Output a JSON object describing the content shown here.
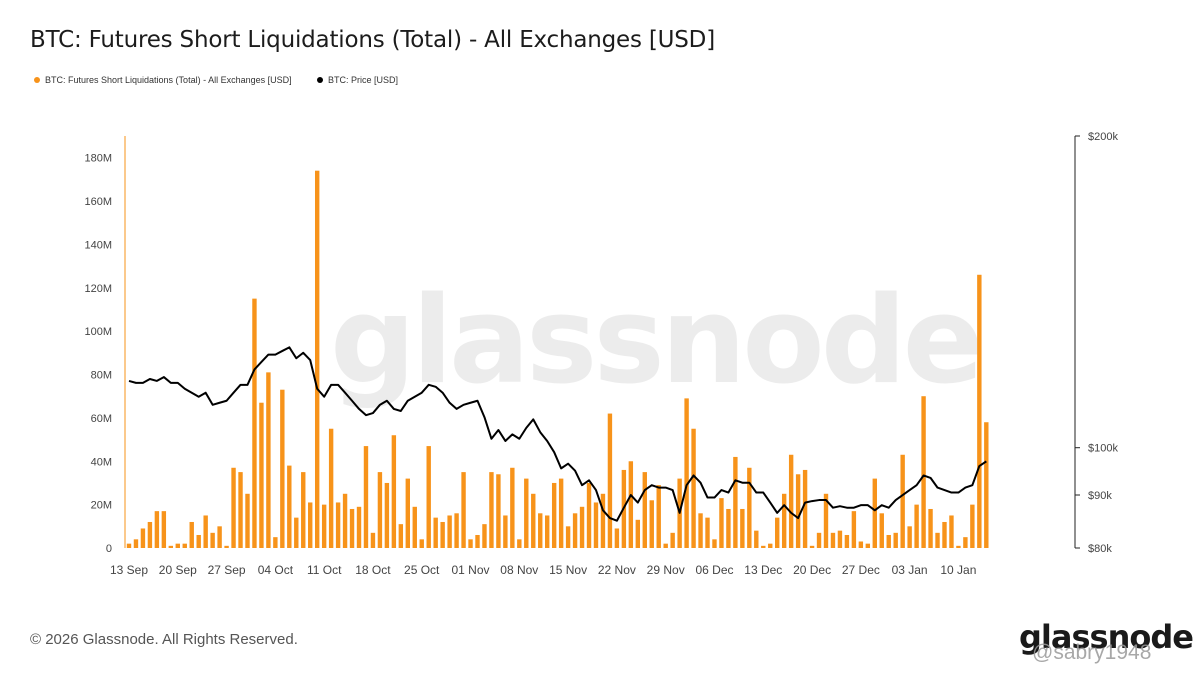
{
  "page": {
    "title": "BTC: Futures Short Liquidations (Total) - All Exchanges [USD]",
    "copyright": "© 2026 Glassnode. All Rights Reserved.",
    "logo_text": "glassnode",
    "background_watermark": "glassnode",
    "user_watermark": "@sabry1948"
  },
  "colors": {
    "bars": "#F7931A",
    "price": "#000000",
    "axis": "#F7931A"
  },
  "chart_data": {
    "type": "bar",
    "title": "BTC: Futures Short Liquidations (Total) - All Exchanges [USD]",
    "legend_position": "top-left",
    "grid": false,
    "x_ticks": [
      "13 Sep",
      "20 Sep",
      "27 Sep",
      "04 Oct",
      "11 Oct",
      "18 Oct",
      "25 Oct",
      "01 Nov",
      "08 Nov",
      "15 Nov",
      "22 Nov",
      "29 Nov",
      "06 Dec",
      "13 Dec",
      "20 Dec",
      "27 Dec",
      "03 Jan",
      "10 Jan"
    ],
    "x_range": [
      "2025-09-13",
      "2026-01-14"
    ],
    "y_left": {
      "ticks": [
        "0",
        "20M",
        "40M",
        "60M",
        "80M",
        "100M",
        "120M",
        "140M",
        "160M",
        "180M"
      ],
      "range": [
        0,
        190
      ]
    },
    "y_right": {
      "scale": "log",
      "ticks": [
        "$80k",
        "$90k",
        "$100k",
        "$200k"
      ],
      "tick_values": [
        80,
        90,
        100,
        200
      ],
      "range": [
        80,
        200
      ]
    },
    "series": [
      {
        "name": "BTC: Futures Short Liquidations (Total) - All Exchanges [USD]",
        "kind": "bar",
        "axis": "left",
        "unit": "M USD",
        "values": [
          2,
          4,
          9,
          12,
          17,
          17,
          1,
          2,
          2,
          12,
          6,
          15,
          7,
          10,
          1,
          37,
          35,
          25,
          115,
          67,
          81,
          5,
          73,
          38,
          14,
          35,
          21,
          174,
          20,
          55,
          21,
          25,
          18,
          19,
          47,
          7,
          35,
          30,
          52,
          11,
          32,
          19,
          4,
          47,
          14,
          12,
          15,
          16,
          35,
          4,
          6,
          11,
          35,
          34,
          15,
          37,
          4,
          32,
          25,
          16,
          15,
          30,
          32,
          10,
          16,
          19,
          30,
          21,
          25,
          62,
          9,
          36,
          40,
          13,
          35,
          22,
          29,
          2,
          7,
          32,
          69,
          55,
          16,
          14,
          4,
          23,
          18,
          42,
          18,
          37,
          8,
          1,
          2,
          14,
          25,
          43,
          34,
          36,
          1,
          7,
          25,
          7,
          8,
          6,
          17,
          3,
          2,
          32,
          16,
          6,
          7,
          43,
          10,
          20,
          70,
          18,
          7,
          12,
          15,
          1,
          5,
          20,
          126,
          58
        ]
      },
      {
        "name": "BTC: Price [USD]",
        "kind": "line",
        "axis": "right",
        "unit": "k USD",
        "values": [
          116,
          115.5,
          115.5,
          116.5,
          116,
          117,
          115.5,
          115.5,
          114,
          113,
          112,
          113,
          110,
          110.5,
          111,
          113,
          115,
          115,
          119,
          121,
          123,
          123,
          124,
          125,
          122,
          123.5,
          121.5,
          114,
          112,
          115,
          115,
          113,
          111,
          109,
          107.5,
          108,
          110,
          111,
          109,
          108.5,
          111,
          112,
          113,
          115,
          114.5,
          113,
          110.5,
          109,
          110,
          110.5,
          111,
          107,
          102,
          104,
          101.5,
          103,
          102,
          104.5,
          106.5,
          103.5,
          101.5,
          99,
          95.5,
          96.5,
          95,
          92,
          93,
          91,
          87,
          85.5,
          85,
          87.5,
          90,
          88.5,
          91,
          92,
          91.5,
          91.5,
          91,
          86.5,
          92,
          94,
          92.5,
          89.5,
          89.5,
          91,
          90.5,
          93,
          92.5,
          92.5,
          90.5,
          90.5,
          88.5,
          86.5,
          88,
          86.5,
          85.5,
          88.5,
          88.8,
          89,
          89,
          87.5,
          87.8,
          87.5,
          87.5,
          88,
          88,
          87,
          88,
          87.5,
          89,
          90,
          91,
          92,
          94,
          93.5,
          91.5,
          91,
          90.5,
          90.5,
          91.5,
          92,
          96,
          97
        ]
      }
    ]
  }
}
